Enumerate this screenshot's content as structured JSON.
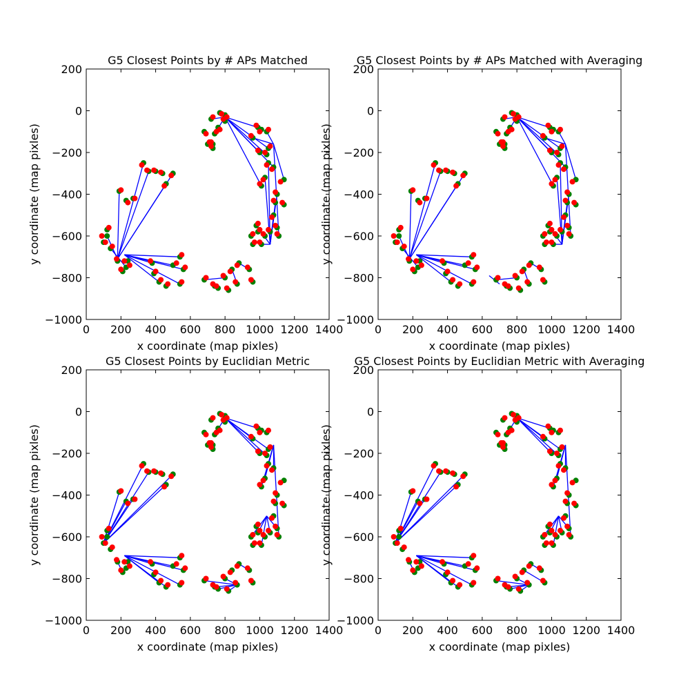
{
  "colors": {
    "green": "#008000",
    "red": "#ff0000",
    "blue": "#0000ff",
    "axis": "#000000"
  },
  "chart_data": [
    {
      "type": "scatter",
      "title": "G5 Closest Points by # APs Matched",
      "xlabel": "x coordinate (map pixles)",
      "ylabel": "y coordinate (map pixles)",
      "xlim": [
        0,
        1400
      ],
      "ylim": [
        -1000,
        200
      ],
      "xticks": [
        "0",
        "200",
        "400",
        "600",
        "800",
        "1000",
        "1200",
        "1400"
      ],
      "yticks": [
        "200",
        "0",
        "−200",
        "−400",
        "−600",
        "−800",
        "−1000"
      ],
      "variant": "ap",
      "grid": false,
      "legend": "none"
    },
    {
      "type": "scatter",
      "title": "G5 Closest Points by # APs Matched with Averaging",
      "xlabel": "x coordinate (map pixles)",
      "ylabel": "y coordinate (map pixles)",
      "xlim": [
        0,
        1400
      ],
      "ylim": [
        -1000,
        200
      ],
      "xticks": [
        "0",
        "200",
        "400",
        "600",
        "800",
        "1000",
        "1200",
        "1400"
      ],
      "yticks": [
        "200",
        "0",
        "−200",
        "−400",
        "−600",
        "−800",
        "−1000"
      ],
      "variant": "ap_avg",
      "grid": false,
      "legend": "none"
    },
    {
      "type": "scatter",
      "title": "G5 Closest Points by Euclidian Metric",
      "xlabel": "x coordinate (map pixles)",
      "ylabel": "y coordinate (map pixles)",
      "xlim": [
        0,
        1400
      ],
      "ylim": [
        -1000,
        200
      ],
      "xticks": [
        "0",
        "200",
        "400",
        "600",
        "800",
        "1000",
        "1200",
        "1400"
      ],
      "yticks": [
        "200",
        "0",
        "−200",
        "−400",
        "−600",
        "−800",
        "−1000"
      ],
      "variant": "euc",
      "grid": false,
      "legend": "none"
    },
    {
      "type": "scatter",
      "title": "G5 Closest Points by Euclidian Metric with Averaging",
      "xlabel": "x coordinate (map pixles)",
      "ylabel": "y coordinate (map pixles)",
      "xlim": [
        0,
        1400
      ],
      "ylim": [
        -1000,
        200
      ],
      "xticks": [
        "0",
        "200",
        "400",
        "600",
        "800",
        "1000",
        "1200",
        "1400"
      ],
      "yticks": [
        "200",
        "0",
        "−200",
        "−400",
        "−600",
        "−800",
        "−1000"
      ],
      "variant": "euc_avg",
      "grid": false,
      "legend": "none"
    }
  ],
  "true_points": [
    [
      100,
      -630
    ],
    [
      120,
      -600
    ],
    [
      120,
      -570
    ],
    [
      140,
      -660
    ],
    [
      180,
      -720
    ],
    [
      210,
      -770
    ],
    [
      230,
      -750
    ],
    [
      240,
      -720
    ],
    [
      190,
      -385
    ],
    [
      230,
      -430
    ],
    [
      270,
      -420
    ],
    [
      330,
      -250
    ],
    [
      360,
      -290
    ],
    [
      400,
      -290
    ],
    [
      440,
      -300
    ],
    [
      460,
      -350
    ],
    [
      500,
      -300
    ],
    [
      380,
      -730
    ],
    [
      390,
      -780
    ],
    [
      420,
      -820
    ],
    [
      460,
      -840
    ],
    [
      500,
      -740
    ],
    [
      540,
      -830
    ],
    [
      540,
      -700
    ],
    [
      560,
      -760
    ],
    [
      680,
      -810
    ],
    [
      740,
      -840
    ],
    [
      760,
      -850
    ],
    [
      800,
      -800
    ],
    [
      820,
      -860
    ],
    [
      840,
      -760
    ],
    [
      870,
      -830
    ],
    [
      880,
      -730
    ],
    [
      940,
      -760
    ],
    [
      960,
      -820
    ],
    [
      950,
      -600
    ],
    [
      960,
      -640
    ],
    [
      980,
      -550
    ],
    [
      990,
      -580
    ],
    [
      1010,
      -640
    ],
    [
      1030,
      -600
    ],
    [
      1060,
      -580
    ],
    [
      1100,
      -560
    ],
    [
      1080,
      -500
    ],
    [
      1090,
      -440
    ],
    [
      1110,
      -600
    ],
    [
      1140,
      -450
    ],
    [
      1140,
      -330
    ],
    [
      1100,
      -400
    ],
    [
      1080,
      -270
    ],
    [
      1050,
      -250
    ],
    [
      1030,
      -320
    ],
    [
      1010,
      -360
    ],
    [
      1000,
      -200
    ],
    [
      1040,
      -210
    ],
    [
      1050,
      -180
    ],
    [
      1040,
      -100
    ],
    [
      1010,
      -90
    ],
    [
      990,
      -80
    ],
    [
      960,
      -130
    ],
    [
      770,
      -10
    ],
    [
      800,
      -20
    ],
    [
      800,
      -50
    ],
    [
      760,
      -80
    ],
    [
      740,
      -110
    ],
    [
      730,
      -160
    ],
    [
      680,
      -100
    ],
    [
      700,
      -160
    ],
    [
      730,
      -180
    ],
    [
      720,
      -40
    ]
  ],
  "est_points": [
    [
      90,
      -600
    ],
    [
      110,
      -630
    ],
    [
      130,
      -560
    ],
    [
      150,
      -650
    ],
    [
      175,
      -710
    ],
    [
      200,
      -760
    ],
    [
      220,
      -720
    ],
    [
      250,
      -740
    ],
    [
      200,
      -380
    ],
    [
      240,
      -440
    ],
    [
      280,
      -420
    ],
    [
      320,
      -260
    ],
    [
      350,
      -285
    ],
    [
      390,
      -285
    ],
    [
      430,
      -295
    ],
    [
      450,
      -360
    ],
    [
      490,
      -310
    ],
    [
      370,
      -720
    ],
    [
      400,
      -770
    ],
    [
      430,
      -810
    ],
    [
      470,
      -830
    ],
    [
      520,
      -730
    ],
    [
      550,
      -820
    ],
    [
      550,
      -690
    ],
    [
      570,
      -750
    ],
    [
      690,
      -800
    ],
    [
      730,
      -830
    ],
    [
      750,
      -840
    ],
    [
      790,
      -790
    ],
    [
      810,
      -850
    ],
    [
      830,
      -770
    ],
    [
      860,
      -820
    ],
    [
      870,
      -740
    ],
    [
      930,
      -750
    ],
    [
      950,
      -810
    ],
    [
      960,
      -590
    ],
    [
      970,
      -630
    ],
    [
      990,
      -540
    ],
    [
      1000,
      -570
    ],
    [
      1000,
      -630
    ],
    [
      1020,
      -590
    ],
    [
      1050,
      -570
    ],
    [
      1090,
      -550
    ],
    [
      1070,
      -510
    ],
    [
      1080,
      -430
    ],
    [
      1100,
      -590
    ],
    [
      1130,
      -440
    ],
    [
      1120,
      -340
    ],
    [
      1090,
      -390
    ],
    [
      1070,
      -280
    ],
    [
      1040,
      -260
    ],
    [
      1020,
      -330
    ],
    [
      1000,
      -350
    ],
    [
      990,
      -190
    ],
    [
      1030,
      -200
    ],
    [
      1060,
      -170
    ],
    [
      1050,
      -90
    ],
    [
      1000,
      -100
    ],
    [
      980,
      -70
    ],
    [
      950,
      -120
    ],
    [
      780,
      -15
    ],
    [
      810,
      -30
    ],
    [
      790,
      -40
    ],
    [
      770,
      -90
    ],
    [
      750,
      -100
    ],
    [
      720,
      -150
    ],
    [
      690,
      -110
    ],
    [
      710,
      -150
    ],
    [
      720,
      -170
    ],
    [
      730,
      -30
    ]
  ]
}
